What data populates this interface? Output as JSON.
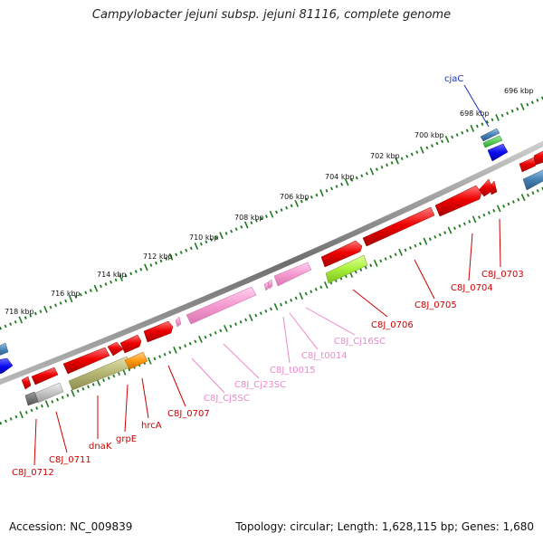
{
  "title": "Campylobacter jejuni subsp. jejuni 81116, complete genome",
  "footer": {
    "accession_label": "Accession:",
    "accession": "NC_009839",
    "topology_text": "Topology: circular; Length: 1,628,115 bp; Genes: 1,680"
  },
  "colors": {
    "backbone": "#8a8a8a",
    "dots": "#1f7a1f",
    "cds": "#ee0000",
    "cds_label": "#cc0000",
    "rna": "#f59ad0",
    "rna_label": "#ee88cc",
    "regulatory": "#aaf03c",
    "cjaC_label": "#1a2fbf",
    "blue_gene": "#0a0af0",
    "steel_gene": "#4682b4",
    "olive_gene": "#b5b572",
    "orange_gene": "#ff9a10"
  },
  "ruler": {
    "unit": "kbp",
    "labels": [
      "718 kbp",
      "716 kbp",
      "714 kbp",
      "712 kbp",
      "710 kbp",
      "708 kbp",
      "706 kbp",
      "704 kbp",
      "702 kbp",
      "700 kbp",
      "698 kbp",
      "696 kbp"
    ]
  },
  "genes": [
    {
      "name": "C8J_0712",
      "type": "CDS"
    },
    {
      "name": "C8J_0711",
      "type": "CDS"
    },
    {
      "name": "dnaK",
      "type": "CDS"
    },
    {
      "name": "grpE",
      "type": "CDS"
    },
    {
      "name": "hrcA",
      "type": "CDS"
    },
    {
      "name": "C8J_0707",
      "type": "CDS"
    },
    {
      "name": "C8J_Cj5SC",
      "type": "rRNA"
    },
    {
      "name": "C8J_Cj23SC",
      "type": "rRNA"
    },
    {
      "name": "C8J_t0015",
      "type": "tRNA"
    },
    {
      "name": "C8J_t0014",
      "type": "tRNA"
    },
    {
      "name": "C8J_Cj16SC",
      "type": "rRNA"
    },
    {
      "name": "C8J_0706",
      "type": "CDS"
    },
    {
      "name": "C8J_0705",
      "type": "CDS"
    },
    {
      "name": "C8J_0704",
      "type": "CDS"
    },
    {
      "name": "C8J_0703",
      "type": "CDS"
    },
    {
      "name": "cjaC",
      "type": "CDS"
    }
  ]
}
